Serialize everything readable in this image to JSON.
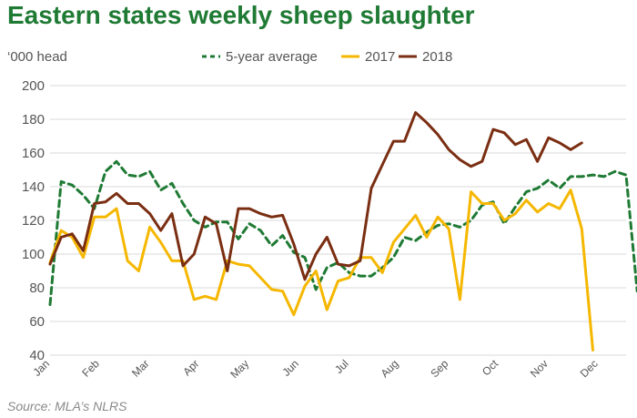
{
  "chart_data": {
    "type": "line",
    "title": "Eastern states weekly sheep slaughter",
    "ylabel": "‘000 head",
    "source": "Source: MLA’s NLRS",
    "ylim": [
      40,
      200
    ],
    "yticks": [
      40,
      60,
      80,
      100,
      120,
      140,
      160,
      180,
      200
    ],
    "x_range": [
      1,
      53
    ],
    "grid": true,
    "legend_position": "top",
    "months": [
      {
        "label": "Jan",
        "week": 1
      },
      {
        "label": "Feb",
        "week": 5.5
      },
      {
        "label": "Mar",
        "week": 10
      },
      {
        "label": "Apr",
        "week": 14.5
      },
      {
        "label": "May",
        "week": 19
      },
      {
        "label": "Jun",
        "week": 23.5
      },
      {
        "label": "Jul",
        "week": 28
      },
      {
        "label": "Aug",
        "week": 32.5
      },
      {
        "label": "Sep",
        "week": 37
      },
      {
        "label": "Oct",
        "week": 41.5
      },
      {
        "label": "Nov",
        "week": 46
      },
      {
        "label": "Dec",
        "week": 50.5
      }
    ],
    "series": [
      {
        "name": "5-year average",
        "color": "#1f7a34",
        "dash": "7,5",
        "values": [
          70,
          143,
          141,
          135,
          127,
          149,
          155,
          147,
          146,
          149,
          138,
          142,
          130,
          120,
          116,
          119,
          119,
          109,
          118,
          114,
          105,
          111,
          101,
          98,
          79,
          92,
          95,
          89,
          87,
          87,
          92,
          98,
          110,
          108,
          113,
          117,
          118,
          116,
          120,
          129,
          131,
          118,
          128,
          137,
          139,
          144,
          139,
          146,
          146,
          147,
          146,
          149,
          147,
          78
        ]
      },
      {
        "name": "2017",
        "color": "#f5b700",
        "dash": "",
        "values": [
          95,
          114,
          110,
          98,
          122,
          122,
          127,
          96,
          90,
          116,
          107,
          96,
          96,
          73,
          75,
          73,
          96,
          94,
          93,
          86,
          79,
          78,
          64,
          81,
          90,
          67,
          84,
          86,
          98,
          98,
          89,
          107,
          115,
          123,
          110,
          122,
          115,
          73,
          137,
          130,
          130,
          120,
          124,
          132,
          125,
          130,
          127,
          138,
          115,
          43
        ]
      },
      {
        "name": "2018",
        "color": "#7a2e12",
        "dash": "",
        "values": [
          94,
          110,
          112,
          102,
          130,
          131,
          136,
          130,
          130,
          124,
          114,
          124,
          93,
          100,
          122,
          118,
          90,
          127,
          127,
          124,
          122,
          123,
          106,
          85,
          100,
          110,
          94,
          93,
          96,
          139,
          153,
          167,
          167,
          184,
          178,
          171,
          162,
          156,
          152,
          155,
          174,
          172,
          165,
          168,
          155,
          169,
          166,
          162,
          166
        ]
      }
    ]
  }
}
